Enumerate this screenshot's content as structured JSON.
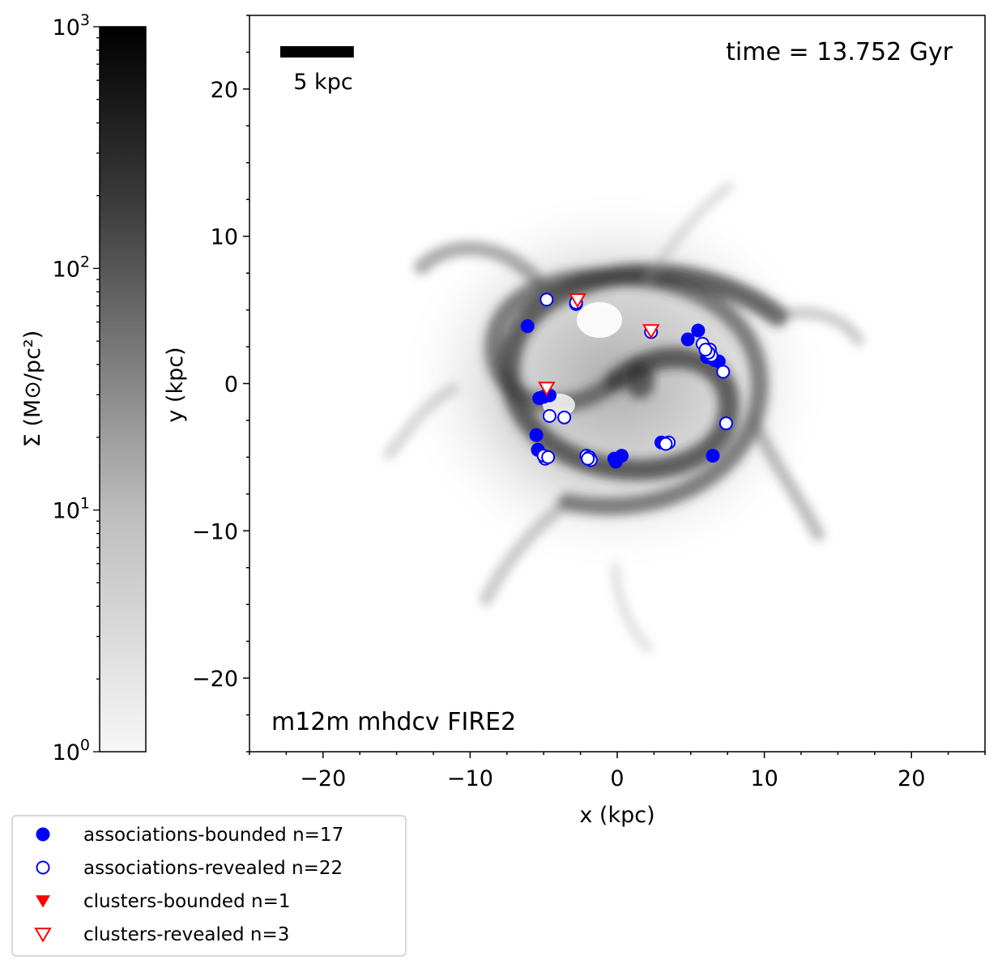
{
  "chart_data": {
    "type": "scatter",
    "title": "",
    "annotation_time": "time = 13.752 Gyr",
    "annotation_sim": "m12m mhdcv FIRE2",
    "scalebar_label": "5 kpc",
    "scalebar_length_kpc": 5,
    "xlabel": "x (kpc)",
    "ylabel": "y (kpc)",
    "xlim": [
      -25,
      25
    ],
    "ylim": [
      -25,
      25
    ],
    "x_ticks": [
      -20,
      -10,
      0,
      10,
      20
    ],
    "y_ticks": [
      -20,
      -10,
      0,
      10,
      20
    ],
    "x_tick_labels": [
      "−20",
      "−10",
      "0",
      "10",
      "20"
    ],
    "y_tick_labels": [
      "−20",
      "−10",
      "0",
      "10",
      "20"
    ],
    "colorbar": {
      "label": "Σ (M⊙/pc²)",
      "scale": "log",
      "range": [
        1,
        1000
      ],
      "colormap": "Greys",
      "tick_labels": [
        {
          "value": 1,
          "base": "10",
          "exp": "0"
        },
        {
          "value": 10,
          "base": "10",
          "exp": "1"
        },
        {
          "value": 100,
          "base": "10",
          "exp": "2"
        },
        {
          "value": 1000,
          "base": "10",
          "exp": "3"
        }
      ]
    },
    "background": "gas surface density map (grayscale) of spiral galaxy",
    "legend_position": "bottom-left outside",
    "series": [
      {
        "name": "associations-bounded n=17",
        "marker": "filled-circle",
        "color": "#0000ff",
        "points": [
          [
            -6.1,
            3.9
          ],
          [
            -2.8,
            5.4
          ],
          [
            5.5,
            3.6
          ],
          [
            4.8,
            3.0
          ],
          [
            6.1,
            1.8
          ],
          [
            6.6,
            1.6
          ],
          [
            6.9,
            1.5
          ],
          [
            -5.3,
            -1.0
          ],
          [
            -5.0,
            -0.9
          ],
          [
            -4.6,
            -0.8
          ],
          [
            -5.5,
            -3.5
          ],
          [
            -5.4,
            -4.5
          ],
          [
            3.0,
            -4.0
          ],
          [
            0.3,
            -4.9
          ],
          [
            -0.2,
            -5.1
          ],
          [
            -0.1,
            -5.3
          ],
          [
            6.5,
            -4.9
          ]
        ]
      },
      {
        "name": "associations-revealed n=22",
        "marker": "open-circle",
        "color": "#0000ff",
        "points": [
          [
            -4.8,
            5.7
          ],
          [
            -2.8,
            5.5
          ],
          [
            2.3,
            3.5
          ],
          [
            5.8,
            2.7
          ],
          [
            6.3,
            2.3
          ],
          [
            6.4,
            1.9
          ],
          [
            7.2,
            0.8
          ],
          [
            -4.6,
            -2.2
          ],
          [
            -3.6,
            -2.3
          ],
          [
            7.4,
            -2.7
          ],
          [
            3.5,
            -4.0
          ],
          [
            3.3,
            -4.1
          ],
          [
            -2.1,
            -4.9
          ],
          [
            -1.9,
            -5.0
          ],
          [
            -1.8,
            -5.2
          ],
          [
            -4.8,
            -5.0
          ],
          [
            -4.9,
            -5.1
          ],
          [
            -5.0,
            -4.9
          ],
          [
            6.2,
            2.1
          ],
          [
            6.0,
            2.3
          ],
          [
            -2.0,
            -5.1
          ],
          [
            -4.7,
            -5.0
          ]
        ]
      },
      {
        "name": "clusters-bounded n=1",
        "marker": "filled-triangle-down",
        "color": "#ff0000",
        "points": [
          [
            -4.8,
            -0.3
          ]
        ]
      },
      {
        "name": "clusters-revealed n=3",
        "marker": "open-triangle-down",
        "color": "#ff0000",
        "points": [
          [
            -2.7,
            5.7
          ],
          [
            2.3,
            3.6
          ],
          [
            -4.8,
            -0.3
          ]
        ]
      }
    ]
  }
}
